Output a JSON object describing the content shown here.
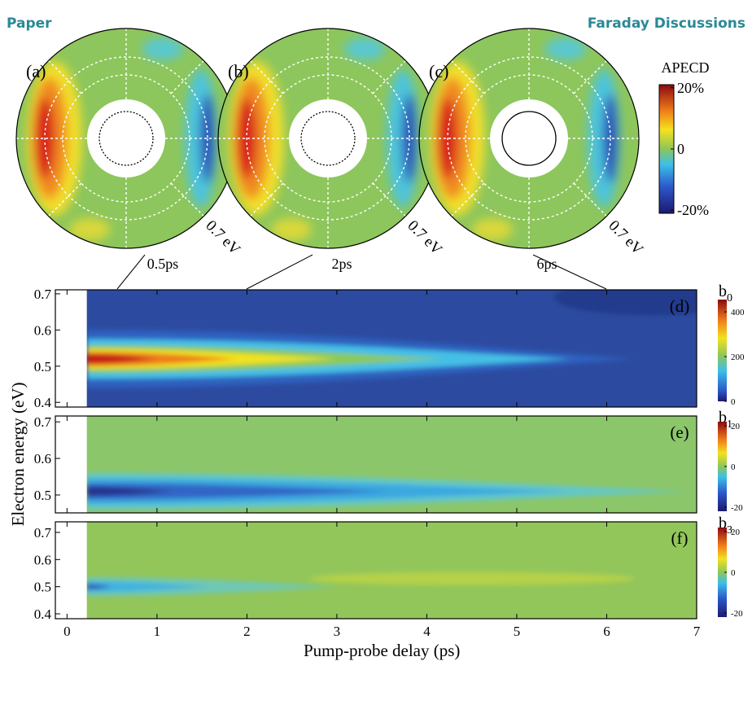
{
  "header": {
    "left": "Paper",
    "right": "Faraday Discussions"
  },
  "polar_panels": [
    {
      "label": "(a)",
      "energy_label": "0.7 eV",
      "delay_label": "0.5ps"
    },
    {
      "label": "(b)",
      "energy_label": "0.7 eV",
      "delay_label": "2ps"
    },
    {
      "label": "(c)",
      "energy_label": "0.7 eV",
      "delay_label": "6ps"
    }
  ],
  "apecd_colorbar": {
    "title": "APECD",
    "lim": [
      -21,
      21
    ],
    "ticks": [
      {
        "value": 20,
        "label": "20%"
      },
      0,
      {
        "value": -20,
        "label": "-20%"
      }
    ]
  },
  "maps": {
    "x_axis": {
      "label": "Pump-probe delay (ps)",
      "xlim": [
        -0.13,
        7
      ],
      "ticks": [
        0,
        1,
        2,
        3,
        4,
        5,
        6,
        7
      ]
    },
    "y_axis_label": "Electron energy (eV)",
    "panels": [
      {
        "label": "(d)",
        "quantity": "b",
        "subscript": "0",
        "ylim": [
          0.387,
          0.711
        ],
        "yticks": [
          0.4,
          0.5,
          0.6,
          0.7
        ],
        "colorbar_lim": [
          0,
          455
        ],
        "colorbar_ticks": [
          0,
          200,
          400
        ]
      },
      {
        "label": "(e)",
        "quantity": "b",
        "subscript": "1",
        "ylim": [
          0.451,
          0.716
        ],
        "yticks": [
          0.5,
          0.6,
          0.7
        ],
        "colorbar_lim": [
          -22,
          22
        ],
        "colorbar_ticks": [
          -20,
          0,
          20
        ]
      },
      {
        "label": "(f)",
        "quantity": "b",
        "subscript": "3",
        "ylim": [
          0.382,
          0.739
        ],
        "yticks": [
          0.4,
          0.5,
          0.6,
          0.7
        ],
        "colorbar_lim": [
          -22,
          22
        ],
        "colorbar_ticks": [
          -20,
          0,
          20
        ]
      }
    ]
  }
}
